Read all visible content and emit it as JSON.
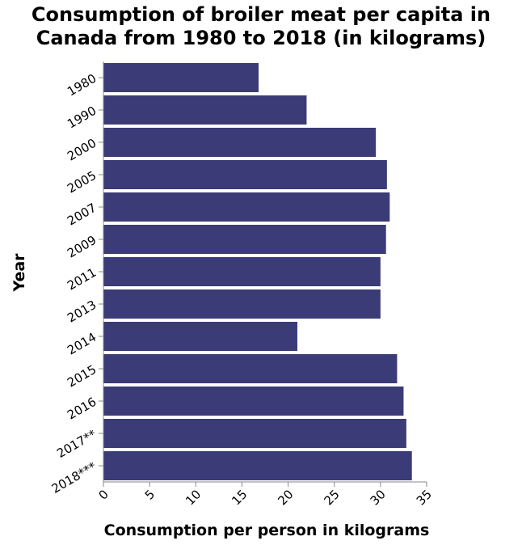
{
  "chart_data": {
    "type": "bar",
    "orientation": "horizontal",
    "title_lines": [
      "Consumption of broiler meat per capita in",
      "Canada from 1980 to 2018 (in kilograms)"
    ],
    "xlabel": "Consumption per person in kilograms",
    "ylabel": "Year",
    "categories": [
      "1980",
      "1990",
      "2000",
      "2005",
      "2007",
      "2009",
      "2011",
      "2013",
      "2014",
      "2015",
      "2016",
      "2017**",
      "2018***"
    ],
    "values": [
      16.8,
      22.0,
      29.5,
      30.7,
      31.0,
      30.6,
      30.0,
      30.0,
      21.0,
      31.8,
      32.5,
      32.8,
      33.4
    ],
    "xlim": [
      0,
      35
    ],
    "xticks": [
      "0",
      "5",
      "10",
      "15",
      "20",
      "25",
      "30",
      "35"
    ],
    "bar_color": "#3b3b78",
    "grid": false,
    "legend": "none"
  }
}
